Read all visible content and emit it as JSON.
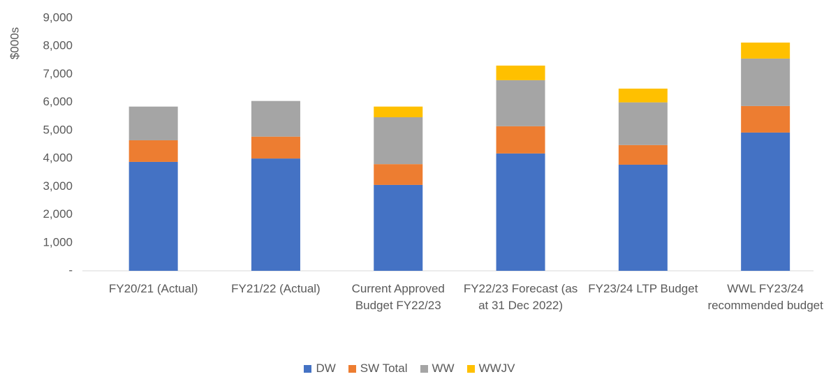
{
  "chart_data": {
    "type": "stacked_bar",
    "y_label": "$000s",
    "categories": [
      "FY20/21 (Actual)",
      "FY21/22 (Actual)",
      "Current Approved Budget FY22/23",
      "FY22/23 Forecast (as at 31 Dec 2022)",
      "FY23/24 LTP Budget",
      "WWL FY23/24 recommended budget"
    ],
    "series": [
      {
        "name": "DW",
        "color": "#4472c4",
        "values": [
          3880,
          4000,
          3060,
          4180,
          3780,
          4925
        ]
      },
      {
        "name": "SW Total",
        "color": "#ed7d31",
        "values": [
          770,
          780,
          740,
          970,
          700,
          945
        ]
      },
      {
        "name": "WW",
        "color": "#a5a5a5",
        "values": [
          1200,
          1270,
          1670,
          1640,
          1520,
          1690
        ]
      },
      {
        "name": "WWJV",
        "color": "#ffc000",
        "values": [
          0,
          0,
          380,
          520,
          490,
          570
        ]
      }
    ],
    "ylim": [
      0,
      9000
    ],
    "yticks": [
      {
        "value": 0,
        "label": "-"
      },
      {
        "value": 1000,
        "label": "1,000"
      },
      {
        "value": 2000,
        "label": "2,000"
      },
      {
        "value": 3000,
        "label": "3,000"
      },
      {
        "value": 4000,
        "label": "4,000"
      },
      {
        "value": 5000,
        "label": "5,000"
      },
      {
        "value": 6000,
        "label": "6,000"
      },
      {
        "value": 7000,
        "label": "7,000"
      },
      {
        "value": 8000,
        "label": "8,000"
      },
      {
        "value": 9000,
        "label": "9,000"
      }
    ],
    "legend": "bottom"
  }
}
